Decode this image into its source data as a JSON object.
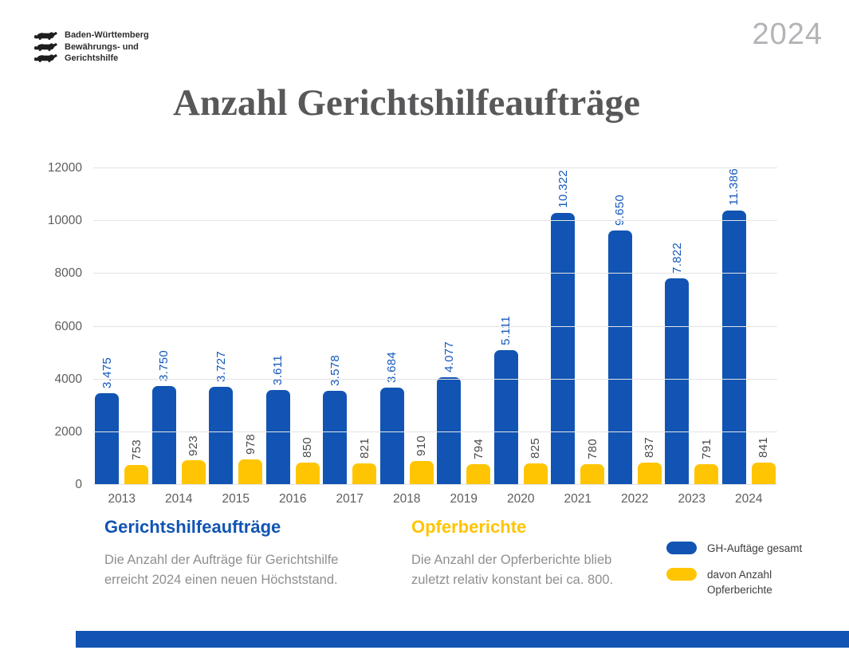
{
  "header": {
    "logo_text_lines": [
      "Baden-Württemberg",
      "Bewährungs- und",
      "Gerichtshilfe"
    ],
    "year": "2024"
  },
  "title": "Anzahl Gerichtshilfeaufträge",
  "chart_data": {
    "type": "bar",
    "title": "Anzahl Gerichtshilfeaufträge",
    "categories": [
      "2013",
      "2014",
      "2015",
      "2016",
      "2017",
      "2018",
      "2019",
      "2020",
      "2021",
      "2022",
      "2023",
      "2024"
    ],
    "series": [
      {
        "name": "GH-Auftäge gesamt",
        "color": "#1154b3",
        "values": [
          3475,
          3750,
          3727,
          3611,
          3578,
          3684,
          4077,
          5111,
          10322,
          9650,
          7822,
          11386
        ],
        "labels": [
          "3.475",
          "3.750",
          "3.727",
          "3.611",
          "3.578",
          "3.684",
          "4.077",
          "5.111",
          "10.322",
          "9.650",
          "7.822",
          "11.386"
        ]
      },
      {
        "name": "davon Anzahl Opferberichte",
        "color": "#ffc502",
        "values": [
          753,
          923,
          978,
          850,
          821,
          910,
          794,
          825,
          780,
          837,
          791,
          841
        ],
        "labels": [
          "753",
          "923",
          "978",
          "850",
          "821",
          "910",
          "794",
          "825",
          "780",
          "837",
          "791",
          "841"
        ]
      }
    ],
    "ylim": [
      0,
      12000
    ],
    "yticks": [
      0,
      2000,
      4000,
      6000,
      8000,
      10000,
      12000
    ],
    "grid": true,
    "legend_position": "bottom-right"
  },
  "notes": {
    "left": {
      "heading": "Gerichtshilfeaufträge",
      "body_lines": [
        "Die Anzahl der Aufträge für Gerichtshilfe",
        "erreicht 2024 einen neuen Höchststand."
      ]
    },
    "right": {
      "heading": "Opferberichte",
      "body_lines": [
        "Die Anzahl der Opferberichte blieb",
        "zuletzt relativ konstant bei ca. 800."
      ]
    }
  },
  "legend": {
    "items": [
      {
        "label_lines": [
          "GH-Auftäge gesamt"
        ],
        "color": "#1154b3"
      },
      {
        "label_lines": [
          "davon Anzahl",
          "Opferberichte"
        ],
        "color": "#ffc502"
      }
    ]
  },
  "colors": {
    "blue": "#1154b3",
    "yellow": "#ffc502",
    "value_label_blue": "#1358bc",
    "value_label_dark": "#4a4a4c",
    "title_text": "#58585a",
    "year_text": "#b2b4b7",
    "grid": "#e4e4e6",
    "axis_text": "#5d5d5f",
    "body_text": "#8f8f92",
    "footer_bar": "#1154b3"
  }
}
